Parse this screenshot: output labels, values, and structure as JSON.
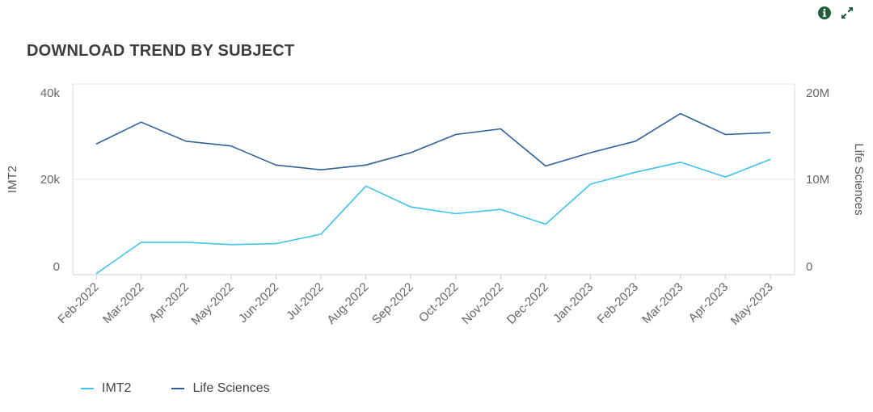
{
  "toolbar": {
    "info_icon": "info-circle-icon",
    "expand_icon": "expand-arrows-icon",
    "icon_color": "#1e5e3b"
  },
  "chart_data": {
    "type": "line",
    "title": "DOWNLOAD TREND BY SUBJECT",
    "categories": [
      "Feb-2022",
      "Mar-2022",
      "Apr-2022",
      "May-2022",
      "Jun-2022",
      "Jul-2022",
      "Aug-2022",
      "Sep-2022",
      "Oct-2022",
      "Nov-2022",
      "Dec-2022",
      "Jan-2023",
      "Feb-2023",
      "Mar-2023",
      "Apr-2023",
      "May-2023"
    ],
    "series": [
      {
        "name": "IMT2",
        "axis": "left",
        "color": "#3ec3ef",
        "values": [
          200,
          6800,
          6800,
          6300,
          6500,
          8500,
          18600,
          14200,
          12800,
          13700,
          10600,
          19000,
          21500,
          23600,
          20500,
          24200
        ]
      },
      {
        "name": "Life Sciences",
        "axis": "right",
        "color": "#2f5f98",
        "values": [
          13700000,
          16000000,
          14000000,
          13500000,
          11500000,
          11000000,
          11500000,
          12800000,
          14700000,
          15300000,
          11400000,
          12800000,
          14000000,
          16900000,
          14700000,
          14900000
        ]
      }
    ],
    "y_left": {
      "label": "IMT2",
      "ylim": [
        0,
        40000
      ],
      "ticks": [
        0,
        20000,
        40000
      ],
      "tick_labels": [
        "0",
        "20k",
        "40k"
      ]
    },
    "y_right": {
      "label": "Life Sciences",
      "ylim": [
        0,
        20000000
      ],
      "ticks": [
        0,
        10000000,
        20000000
      ],
      "tick_labels": [
        "0",
        "10M",
        "20M"
      ]
    },
    "grid": true,
    "legend": "bottom-left"
  }
}
